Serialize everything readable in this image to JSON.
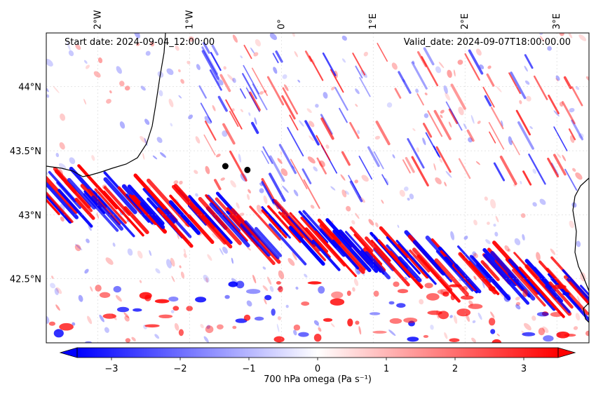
{
  "header": {
    "start_date": "Start date: 2024-09-04_12:00:00",
    "valid_date": "Valid_date: 2024-09-07T18:00:00.00"
  },
  "map": {
    "extent": {
      "lon_min": -2.56,
      "lon_max": 3.35,
      "lat_min": 42.0,
      "lat_max": 44.42
    },
    "lon_ticks": [
      {
        "value": -2,
        "label": "2°W"
      },
      {
        "value": -1,
        "label": "1°W"
      },
      {
        "value": 0,
        "label": "0°"
      },
      {
        "value": 1,
        "label": "1°E"
      },
      {
        "value": 2,
        "label": "2°E"
      },
      {
        "value": 3,
        "label": "3°E"
      }
    ],
    "lat_ticks": [
      {
        "value": 44.0,
        "label": "44°N"
      },
      {
        "value": 43.5,
        "label": "43.5°N"
      },
      {
        "value": 43.0,
        "label": "43°N"
      },
      {
        "value": 42.5,
        "label": "42.5°N"
      }
    ],
    "points": [
      {
        "lon": -0.61,
        "lat": 43.38
      },
      {
        "lon": -0.37,
        "lat": 43.35
      }
    ],
    "field_colors": {
      "negative": "#0000ff",
      "neutral": "#ffffff",
      "positive": "#ff0000"
    }
  },
  "colorbar": {
    "label": "700 hPa omega (Pa s⁻¹)",
    "min": -3.5,
    "max": 3.5,
    "ticks": [
      {
        "value": -3,
        "label": "−3"
      },
      {
        "value": -2,
        "label": "−2"
      },
      {
        "value": -1,
        "label": "−1"
      },
      {
        "value": 0,
        "label": "0"
      },
      {
        "value": 1,
        "label": "1"
      },
      {
        "value": 2,
        "label": "2"
      },
      {
        "value": 3,
        "label": "3"
      }
    ],
    "extend": "both",
    "cmap": "bwr"
  }
}
